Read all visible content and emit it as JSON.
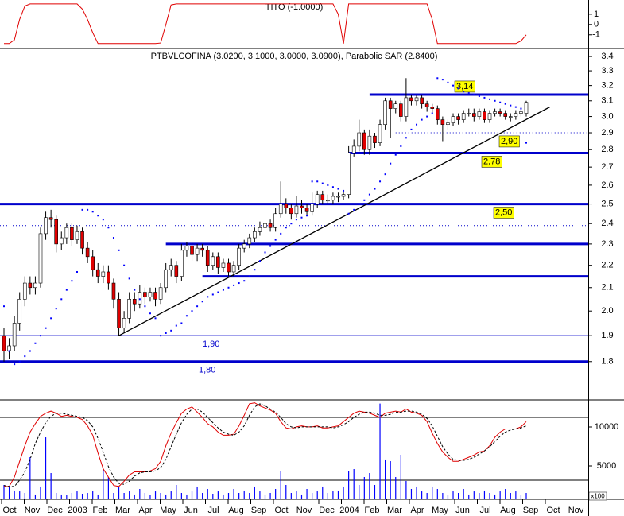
{
  "chart_data": [
    {
      "type": "line",
      "title": "TITO (-1.0000)",
      "color": "#e00000",
      "ylim": [
        -2.1,
        2.15
      ],
      "yticks": [
        1,
        0,
        -1
      ],
      "values": [
        -1.85,
        -1.85,
        -1.5,
        0.5,
        1.8,
        2,
        2,
        2,
        2,
        2,
        2,
        2,
        2,
        2,
        2,
        1.5,
        0.5,
        -0.8,
        -1.85,
        -1.85,
        -1.85,
        -1.85,
        -1.85,
        -1.85,
        -1.85,
        -1.85,
        -1.85,
        -1.85,
        -1.85,
        -1.85,
        -1.8,
        0,
        1.9,
        2,
        2,
        2,
        2,
        2,
        2,
        2,
        2,
        2,
        2,
        2,
        2,
        2,
        2,
        2,
        2,
        2,
        2,
        2,
        2,
        2,
        2,
        2,
        2,
        2,
        2,
        2,
        2,
        2,
        2,
        2,
        1,
        -1.85,
        2,
        2,
        2,
        2,
        2,
        2,
        2,
        2,
        2,
        2,
        2,
        2,
        2,
        2,
        2,
        2,
        0.5,
        -1.85,
        -1.85,
        -1.85,
        -1.85,
        -1.85,
        -1.85,
        -1.85,
        -1.85,
        -1.85,
        -1.85,
        -1.85,
        -1.85,
        -1.85,
        -1.85,
        -1.85,
        -1.85,
        -1.6,
        -1
      ]
    },
    {
      "type": "candlestick",
      "title": "PTBVLCOFINA (3.0200, 3.1000, 3.0000, 3.0900), Parabolic SAR (2.8400)",
      "log": true,
      "ylim": [
        1.67,
        3.44
      ],
      "yticks": [
        1.8,
        1.9,
        {
          "value": 2,
          "label": "2.0"
        },
        2.1,
        2.2,
        2.3,
        2.4,
        2.5,
        2.6,
        2.7,
        2.8,
        2.9,
        {
          "value": 3,
          "label": "3.0"
        },
        3.1,
        3.2,
        3.3,
        3.4
      ],
      "up_color": "#ffffff",
      "down_color": "#e00000",
      "open": [
        1.9,
        1.84,
        1.86,
        1.95,
        2.05,
        2.12,
        2.1,
        2.12,
        2.35,
        2.43,
        2.42,
        2.3,
        2.33,
        2.38,
        2.32,
        2.36,
        2.28,
        2.24,
        2.18,
        2.15,
        2.17,
        2.12,
        2.05,
        1.93,
        1.97,
        2.05,
        2.03,
        2.08,
        2.06,
        2.08,
        2.05,
        2.1,
        2.18,
        2.2,
        2.15,
        2.27,
        2.29,
        2.25,
        2.28,
        2.27,
        2.2,
        2.24,
        2.19,
        2.21,
        2.17,
        2.2,
        2.28,
        2.3,
        2.33,
        2.36,
        2.38,
        2.4,
        2.38,
        2.45,
        2.5,
        2.48,
        2.45,
        2.49,
        2.48,
        2.46,
        2.5,
        2.55,
        2.52,
        2.52,
        2.54,
        2.54,
        2.55,
        2.78,
        2.82,
        2.9,
        2.8,
        2.88,
        2.84,
        2.95,
        3.1,
        3.05,
        3.08,
        3.0,
        3.12,
        3.1,
        3.12,
        3.08,
        3.06,
        3.05,
        2.98,
        2.95,
        2.96,
        3.0,
        2.98,
        3.02,
        3.02,
        3.0,
        3.03,
        2.98,
        3.02,
        3.03,
        3.02,
        3.0,
        3.0,
        3.02,
        3.02
      ],
      "high": [
        1.93,
        1.89,
        1.98,
        2.08,
        2.15,
        2.15,
        2.15,
        2.38,
        2.46,
        2.47,
        2.44,
        2.36,
        2.4,
        2.4,
        2.39,
        2.38,
        2.31,
        2.27,
        2.21,
        2.2,
        2.2,
        2.14,
        2.08,
        2.0,
        2.08,
        2.08,
        2.11,
        2.1,
        2.1,
        2.1,
        2.12,
        2.21,
        2.23,
        2.22,
        2.3,
        2.31,
        2.31,
        2.3,
        2.3,
        2.29,
        2.26,
        2.26,
        2.23,
        2.23,
        2.22,
        2.3,
        2.32,
        2.35,
        2.38,
        2.41,
        2.43,
        2.42,
        2.48,
        2.62,
        2.53,
        2.5,
        2.54,
        2.52,
        2.5,
        2.56,
        2.57,
        2.57,
        2.55,
        2.56,
        2.56,
        2.57,
        2.82,
        2.86,
        2.98,
        2.92,
        2.92,
        2.9,
        2.98,
        3.12,
        3.12,
        3.1,
        3.1,
        3.25,
        3.14,
        3.14,
        3.14,
        3.1,
        3.08,
        3.07,
        3.0,
        2.98,
        3.02,
        3.02,
        3.04,
        3.05,
        3.05,
        3.05,
        3.05,
        3.04,
        3.05,
        3.05,
        3.04,
        3.02,
        3.04,
        3.05,
        3.1
      ],
      "low": [
        1.8,
        1.81,
        1.84,
        1.92,
        2.02,
        2.07,
        2.07,
        2.1,
        2.32,
        2.38,
        2.26,
        2.27,
        2.3,
        2.29,
        2.3,
        2.25,
        2.21,
        2.15,
        2.12,
        2.12,
        2.09,
        2.01,
        1.9,
        1.91,
        1.95,
        2.0,
        2.01,
        2.03,
        2.04,
        2.02,
        2.03,
        2.08,
        2.15,
        2.12,
        2.13,
        2.24,
        2.22,
        2.22,
        2.24,
        2.17,
        2.18,
        2.16,
        2.17,
        2.15,
        2.15,
        2.18,
        2.26,
        2.28,
        2.31,
        2.34,
        2.35,
        2.36,
        2.36,
        2.43,
        2.45,
        2.42,
        2.43,
        2.45,
        2.44,
        2.44,
        2.48,
        2.5,
        2.5,
        2.5,
        2.51,
        2.52,
        2.53,
        2.76,
        2.79,
        2.77,
        2.77,
        2.81,
        2.82,
        2.92,
        2.87,
        3.02,
        2.97,
        2.97,
        3.07,
        3.07,
        3.05,
        3.03,
        3.02,
        2.95,
        2.85,
        2.92,
        2.94,
        2.95,
        2.96,
        3.0,
        2.97,
        2.98,
        2.96,
        2.96,
        3.0,
        3.0,
        2.98,
        2.97,
        2.98,
        3.0,
        3.0
      ],
      "close": [
        1.84,
        1.86,
        1.95,
        2.05,
        2.12,
        2.1,
        2.12,
        2.35,
        2.43,
        2.42,
        2.3,
        2.33,
        2.38,
        2.32,
        2.36,
        2.28,
        2.24,
        2.18,
        2.15,
        2.17,
        2.12,
        2.05,
        1.93,
        1.97,
        2.05,
        2.03,
        2.08,
        2.06,
        2.08,
        2.05,
        2.1,
        2.18,
        2.2,
        2.15,
        2.27,
        2.29,
        2.25,
        2.28,
        2.27,
        2.2,
        2.24,
        2.19,
        2.21,
        2.17,
        2.2,
        2.28,
        2.3,
        2.33,
        2.36,
        2.38,
        2.4,
        2.38,
        2.45,
        2.5,
        2.48,
        2.45,
        2.49,
        2.48,
        2.46,
        2.5,
        2.55,
        2.52,
        2.52,
        2.54,
        2.54,
        2.55,
        2.78,
        2.82,
        2.9,
        2.8,
        2.88,
        2.84,
        2.95,
        3.1,
        3.05,
        3.08,
        3.0,
        3.12,
        3.1,
        3.12,
        3.08,
        3.06,
        3.05,
        2.98,
        2.95,
        2.96,
        3.0,
        2.98,
        3.02,
        3.02,
        3.0,
        3.03,
        2.98,
        3.02,
        3.03,
        3.02,
        3.0,
        3.0,
        3.02,
        3.03,
        3.09
      ],
      "sar": {
        "color": "#0000ff",
        "values": [
          2.02,
          1.84,
          1.79,
          1.8,
          1.82,
          1.84,
          1.87,
          1.9,
          1.93,
          1.97,
          2.01,
          2.05,
          2.09,
          2.13,
          2.17,
          2.47,
          2.47,
          2.46,
          2.44,
          2.42,
          2.38,
          2.33,
          2.27,
          2.2,
          2.14,
          2.09,
          2.05,
          2.02,
          1.99,
          1.97,
          1.9,
          1.91,
          1.92,
          1.94,
          1.95,
          1.98,
          2.0,
          2.02,
          2.04,
          2.06,
          2.07,
          2.08,
          2.09,
          2.1,
          2.11,
          2.12,
          2.13,
          2.15,
          2.18,
          2.22,
          2.26,
          2.29,
          2.32,
          2.35,
          2.38,
          2.4,
          2.42,
          2.43,
          2.44,
          2.62,
          2.62,
          2.61,
          2.6,
          2.59,
          2.58,
          2.57,
          2.45,
          2.47,
          2.5,
          2.52,
          2.55,
          2.58,
          2.62,
          2.66,
          2.72,
          2.77,
          2.82,
          2.87,
          2.92,
          2.95,
          2.98,
          3.0,
          3.02,
          3.25,
          3.24,
          3.22,
          3.2,
          3.18,
          3.16,
          3.15,
          3.14,
          3.13,
          3.12,
          3.11,
          3.1,
          3.09,
          3.08,
          3.07,
          3.06,
          3.05,
          2.84
        ]
      },
      "level_color": "#0000cc",
      "levels": [
        {
          "value": 3.14,
          "label": "3,14",
          "start": 70,
          "style": "solid",
          "boxed": true
        },
        {
          "value": 2.9,
          "label": "2,90",
          "start": 75,
          "style": "dotted",
          "boxed": true
        },
        {
          "value": 2.78,
          "label": "2,78",
          "start": 66,
          "style": "solid",
          "boxed": true
        },
        {
          "value": 2.5,
          "label": "2,50",
          "start": 0,
          "style": "solid",
          "boxed": true
        },
        {
          "value": 2.39,
          "start": 0,
          "style": "dotted"
        },
        {
          "value": 2.3,
          "start": 31,
          "style": "solid"
        },
        {
          "value": 2.15,
          "start": 38,
          "style": "solid"
        },
        {
          "value": 1.9,
          "label": "1,90",
          "start": 0,
          "style": "thin"
        },
        {
          "value": 1.8,
          "label": "1,80",
          "start": 0,
          "style": "solid"
        }
      ],
      "trendline": {
        "color": "#000000",
        "x": [
          22,
          104.5
        ],
        "y": [
          1.9,
          3.06
        ]
      }
    },
    {
      "type": "volume",
      "color": "#0000ff",
      "unit_label": "x100",
      "ylim": [
        714,
        13265
      ],
      "yticks": [
        10000,
        5000
      ],
      "values": [
        2550,
        2350,
        1840,
        1730,
        1530,
        6120,
        1330,
        2350,
        8670,
        4080,
        1530,
        1330,
        1230,
        1530,
        1730,
        1430,
        1530,
        1730,
        1330,
        4590,
        3570,
        1530,
        2350,
        1530,
        1730,
        1330,
        2040,
        1530,
        1230,
        1730,
        1530,
        1330,
        1730,
        2550,
        1530,
        1330,
        1730,
        2350,
        1530,
        2040,
        1430,
        1730,
        1330,
        1530,
        2040,
        1530,
        1840,
        1530,
        2350,
        1730,
        1330,
        1530,
        2040,
        4290,
        2550,
        1530,
        1730,
        1330,
        2040,
        1530,
        1730,
        2350,
        1530,
        1730,
        1840,
        2350,
        4290,
        4590,
        2550,
        3570,
        4080,
        2550,
        13000,
        5820,
        5610,
        3570,
        6430,
        3060,
        2040,
        2350,
        1730,
        1530,
        2350,
        2040,
        1530,
        1330,
        1730,
        1530,
        2040,
        1330,
        1730,
        1530,
        1840,
        1530,
        1330,
        1730,
        2040,
        1530,
        1730,
        1330,
        1530
      ],
      "y2lim": [
        1.8,
        95.2
      ],
      "y2_levels": [
        80,
        20
      ],
      "series": [
        {
          "color": "#e00000",
          "axis": "y2",
          "values": [
            14,
            14,
            23,
            38,
            53,
            66,
            74,
            81,
            84,
            86,
            84,
            81,
            82,
            81,
            80,
            78,
            72,
            63,
            46,
            31,
            23,
            15,
            14,
            19,
            25,
            28,
            28,
            28,
            29,
            31,
            38,
            53,
            65,
            75,
            84,
            88,
            90,
            85,
            80,
            74,
            71,
            66,
            63,
            63,
            64,
            72,
            82,
            93,
            94,
            91,
            89,
            87,
            84,
            76,
            70,
            69,
            71,
            72,
            71,
            71,
            72,
            70,
            70,
            71,
            72,
            76,
            80,
            84,
            86,
            85,
            84,
            82,
            80,
            84,
            85,
            86,
            85,
            88,
            85,
            84,
            82,
            76,
            65,
            55,
            47,
            42,
            38,
            38,
            40,
            42,
            44,
            47,
            48,
            53,
            61,
            66,
            69,
            69,
            69,
            71,
            76
          ]
        },
        {
          "color": "#000000",
          "dash": true,
          "axis": "y2",
          "values": [
            15,
            14,
            14,
            20,
            28,
            40,
            55,
            66,
            75,
            81,
            84,
            84,
            83,
            82,
            81,
            80,
            77,
            71,
            60,
            47,
            33,
            23,
            17,
            16,
            19,
            24,
            27,
            28,
            28,
            29,
            32,
            40,
            52,
            64,
            75,
            83,
            88,
            88,
            85,
            80,
            75,
            70,
            66,
            64,
            63,
            66,
            72,
            82,
            90,
            93,
            91,
            88,
            85,
            80,
            74,
            71,
            70,
            71,
            71,
            71,
            71,
            71,
            71,
            70,
            71,
            73,
            76,
            80,
            83,
            85,
            85,
            84,
            82,
            82,
            83,
            85,
            85,
            86,
            86,
            85,
            83,
            79,
            72,
            62,
            52,
            45,
            40,
            39,
            39,
            40,
            42,
            45,
            48,
            52,
            57,
            62,
            66,
            68,
            69,
            70,
            72
          ]
        }
      ],
      "x_labels": [
        "Oct",
        "Nov",
        "Dec",
        "2003",
        "Feb",
        "Mar",
        "Apr",
        "May",
        "Jun",
        "Jul",
        "Aug",
        "Sep",
        "Oct",
        "Nov",
        "Dec",
        "2004",
        "Feb",
        "Mar",
        "Apr",
        "May",
        "Jun",
        "Jul",
        "Aug",
        "Sep",
        "Oct",
        "Nov"
      ]
    }
  ]
}
